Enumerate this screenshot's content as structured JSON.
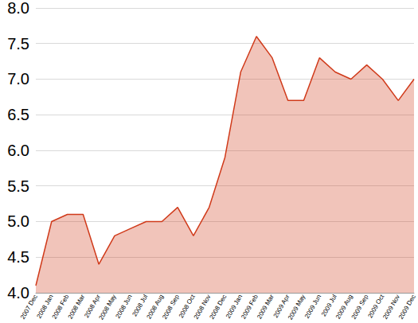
{
  "chart_data": {
    "type": "area",
    "categories": [
      "2007 Dec",
      "2008 Jan",
      "2008 Feb",
      "2008 Mar",
      "2008 Apr",
      "2008 May",
      "2008 Jun",
      "2008 Jul",
      "2008 Aug",
      "2008 Sep",
      "2008 Oct",
      "2008 Nov",
      "2008 Dec",
      "2009 Jan",
      "2009 Feb",
      "2009 Mar",
      "2009 Apr",
      "2009 May",
      "2009 Jun",
      "2009 Jul",
      "2009 Aug",
      "2009 Sep",
      "2009 Oct",
      "2009 Nov",
      "2009 Dec"
    ],
    "values": [
      4.1,
      5.0,
      5.1,
      5.1,
      4.4,
      4.8,
      4.9,
      5.0,
      5.0,
      5.2,
      4.8,
      5.2,
      5.9,
      7.1,
      7.6,
      7.3,
      6.7,
      6.7,
      7.3,
      7.1,
      7.0,
      7.2,
      7.0,
      6.7,
      7.0
    ],
    "color": "#d03a1a",
    "ylim": [
      4.0,
      8.0
    ],
    "yticks": [
      {
        "value": 4.0,
        "label": "4.0"
      },
      4.5,
      {
        "value": 5.0,
        "label": "5.0"
      },
      5.5,
      {
        "value": 6.0,
        "label": "6.0"
      },
      6.5,
      {
        "value": 7.0,
        "label": "7.0"
      },
      7.5,
      {
        "value": 8.0,
        "label": "8.0"
      }
    ],
    "grid": true
  }
}
